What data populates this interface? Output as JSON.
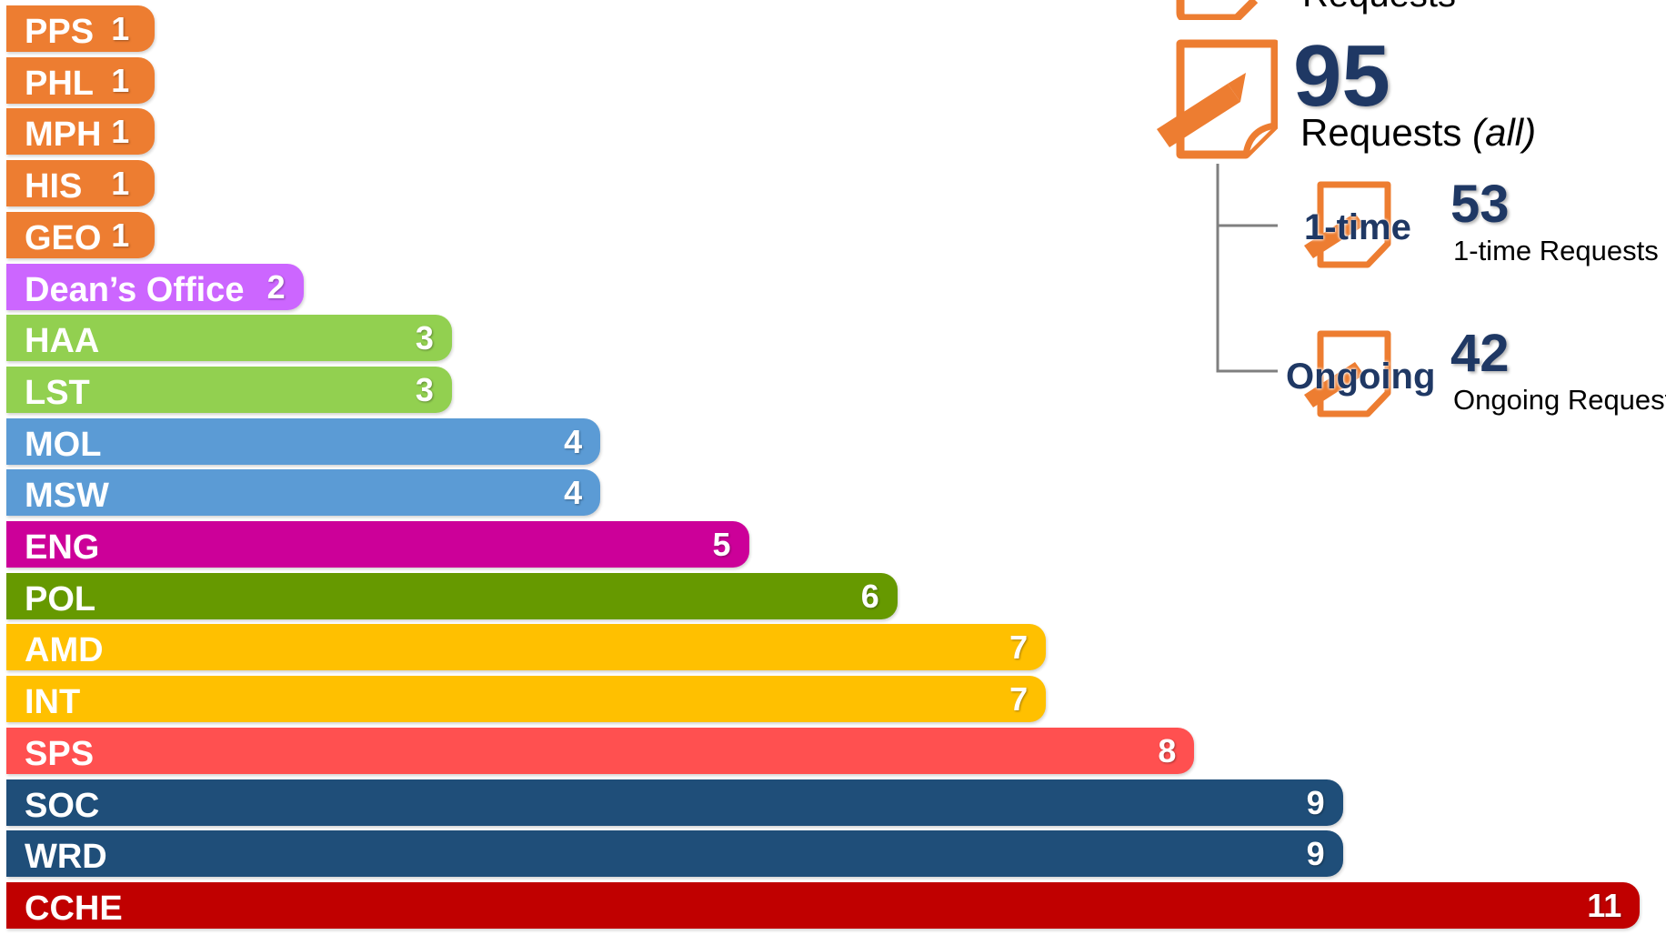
{
  "chart_data": {
    "type": "bar",
    "orientation": "horizontal",
    "categories": [
      "PPS",
      "PHL",
      "MPH",
      "HIS",
      "GEO",
      "Dean’s Office",
      "HAA",
      "LST",
      "MOL",
      "MSW",
      "ENG",
      "POL",
      "AMD",
      "INT",
      "SPS",
      "SOC",
      "WRD",
      "CCHE"
    ],
    "values": [
      1,
      1,
      1,
      1,
      1,
      2,
      3,
      3,
      4,
      4,
      5,
      6,
      7,
      7,
      8,
      9,
      9,
      11
    ],
    "value_labels": [
      "1",
      "1",
      "1",
      "1",
      "1",
      "2",
      "3",
      "3",
      "4",
      "4",
      "5",
      "6",
      "7",
      "7",
      "8",
      "9",
      "9",
      "11"
    ],
    "colors": [
      "#ed7d31",
      "#ed7d31",
      "#ed7d31",
      "#ed7d31",
      "#ed7d31",
      "#cc66ff",
      "#92d050",
      "#92d050",
      "#5b9bd5",
      "#5b9bd5",
      "#cc0099",
      "#669900",
      "#ffc000",
      "#ffc000",
      "#ff5050",
      "#1f4e79",
      "#1f4e79",
      "#c00000"
    ],
    "xlim": [
      0,
      11
    ],
    "grid": false,
    "legend": "none"
  },
  "stats": {
    "top_partial_label": "Requests",
    "total": {
      "number": "95",
      "label": "Requests",
      "label_suffix": "(all)"
    },
    "one_time": {
      "icon_word": "1-time",
      "number": "53",
      "label": "1-time Requests"
    },
    "ongoing": {
      "icon_word": "Ongoing",
      "number": "42",
      "label": "Ongoing Requests"
    }
  },
  "colors": {
    "stat_number": "#1f3864",
    "icon": "#ed7d31"
  },
  "icons": [
    "edit-document-icon",
    "edit-document-icon",
    "edit-document-icon",
    "edit-document-icon"
  ]
}
